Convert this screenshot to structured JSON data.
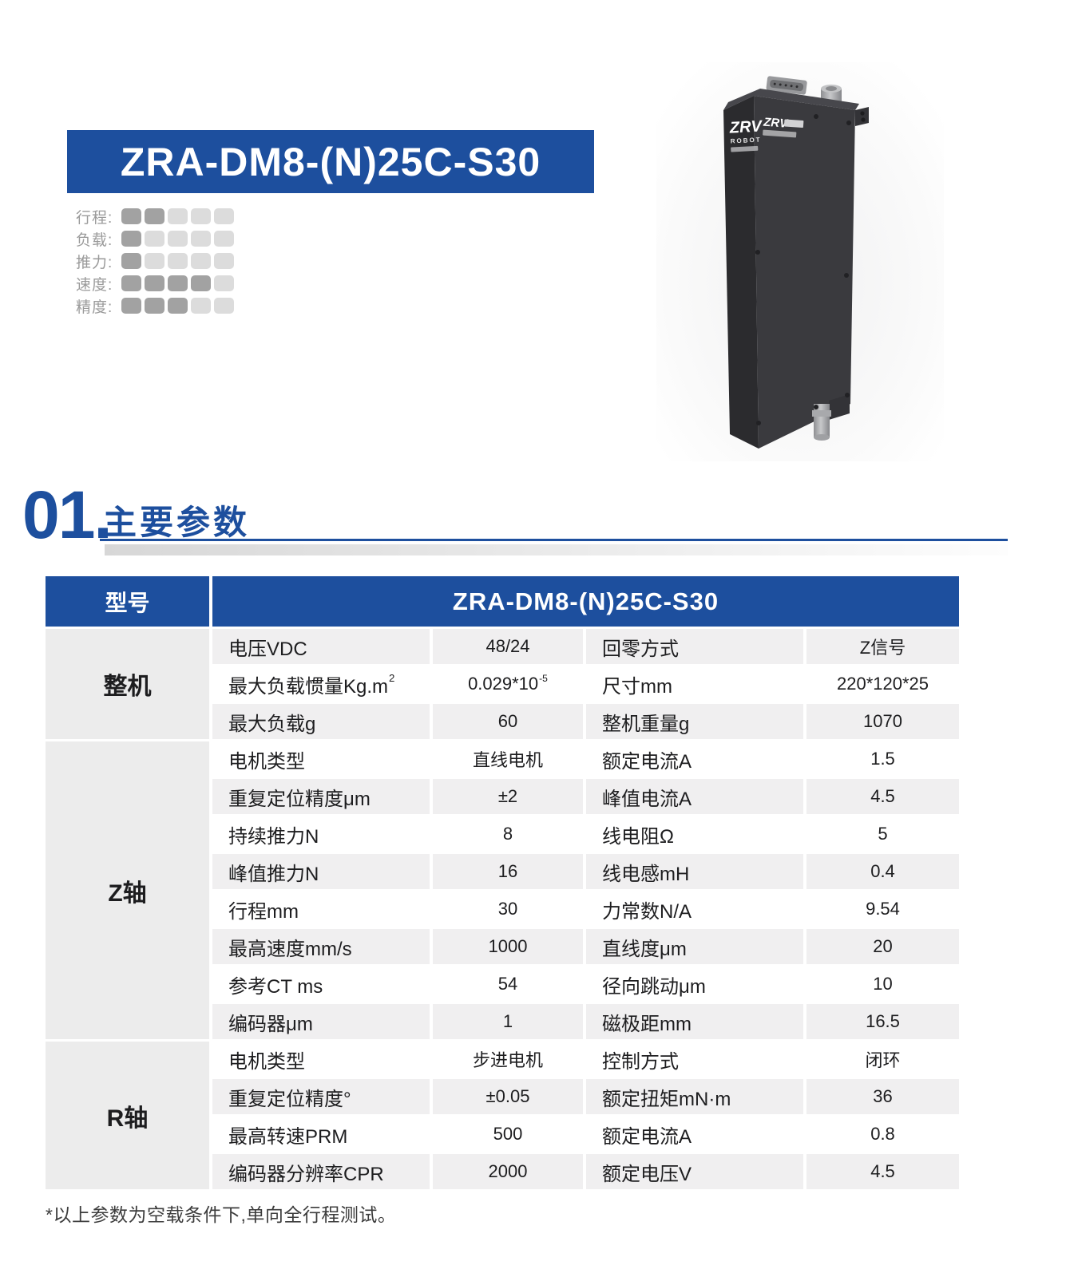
{
  "accent_blue": "#1d4f9e",
  "banner": {
    "model": "ZRA-DM8-(N)25C-S30"
  },
  "ratings": {
    "max": 5,
    "items": [
      {
        "label": "行程:",
        "value": 2
      },
      {
        "label": "负载:",
        "value": 1
      },
      {
        "label": "推力:",
        "value": 1
      },
      {
        "label": "速度:",
        "value": 4
      },
      {
        "label": "精度:",
        "value": 3
      }
    ]
  },
  "product": {
    "logo_top": "ZRV",
    "logo_bottom": "ROBOT"
  },
  "section": {
    "number": "01.",
    "title": "主要参数"
  },
  "table": {
    "header": {
      "col1": "型号",
      "model": "ZRA-DM8-(N)25C-S30"
    },
    "sections": [
      {
        "name": "整机",
        "rows": [
          [
            "电压VDC",
            "48/24",
            "回零方式",
            "Z信号"
          ],
          [
            "最大负载惯量Kg.m^2",
            "0.029*10^-5",
            "尺寸mm",
            "220*120*25"
          ],
          [
            "最大负载g",
            "60",
            "整机重量g",
            "1070"
          ]
        ]
      },
      {
        "name": "Z轴",
        "rows": [
          [
            "电机类型",
            "直线电机",
            "额定电流A",
            "1.5"
          ],
          [
            "重复定位精度μm",
            "±2",
            "峰值电流A",
            "4.5"
          ],
          [
            "持续推力N",
            "8",
            "线电阻Ω",
            "5"
          ],
          [
            "峰值推力N",
            "16",
            "线电感mH",
            "0.4"
          ],
          [
            "行程mm",
            "30",
            "力常数N/A",
            "9.54"
          ],
          [
            "最高速度mm/s",
            "1000",
            "直线度μm",
            "20"
          ],
          [
            "参考CT ms",
            "54",
            "径向跳动μm",
            "10"
          ],
          [
            "编码器μm",
            "1",
            "磁极距mm",
            "16.5"
          ]
        ]
      },
      {
        "name": "R轴",
        "rows": [
          [
            "电机类型",
            "步进电机",
            "控制方式",
            "闭环"
          ],
          [
            "重复定位精度°",
            "±0.05",
            "额定扭矩mN·m",
            "36"
          ],
          [
            "最高转速PRM",
            "500",
            "额定电流A",
            "0.8"
          ],
          [
            "编码器分辨率CPR",
            "2000",
            "额定电压V",
            "4.5"
          ]
        ]
      }
    ]
  },
  "footnote": "*以上参数为空载条件下,单向全行程测试。"
}
